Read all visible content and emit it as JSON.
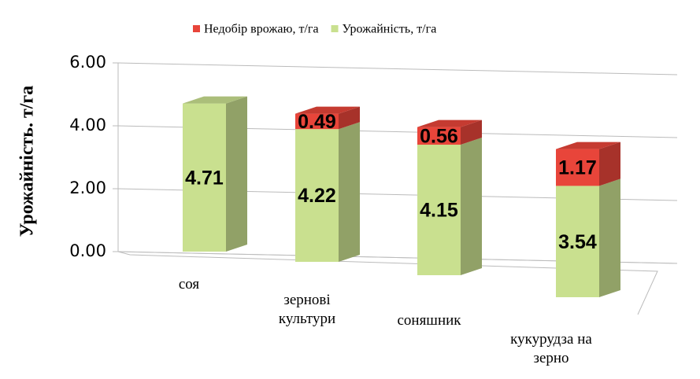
{
  "chart_data": {
    "type": "bar3d-stacked",
    "y_axis_label": "Урожайність. т/га",
    "categories": [
      "соя",
      "зернові культури",
      "соняшник",
      "кукурудза на зерно"
    ],
    "series": [
      {
        "name": "Урожайність, т/га",
        "color": "#c9e08f",
        "values": [
          4.71,
          4.22,
          4.15,
          3.54
        ]
      },
      {
        "name": "Недобір врожаю, т/га",
        "color": "#e8453a",
        "values": [
          null,
          0.49,
          0.56,
          1.17
        ]
      }
    ],
    "legend_order": [
      1,
      0
    ],
    "ylim": [
      0,
      6
    ],
    "yticks": [
      {
        "value": 0,
        "label": "0.00"
      },
      {
        "value": 2,
        "label": "2.00"
      },
      {
        "value": 4,
        "label": "4.00"
      },
      {
        "value": 6,
        "label": "6.00"
      }
    ],
    "grid": true
  }
}
